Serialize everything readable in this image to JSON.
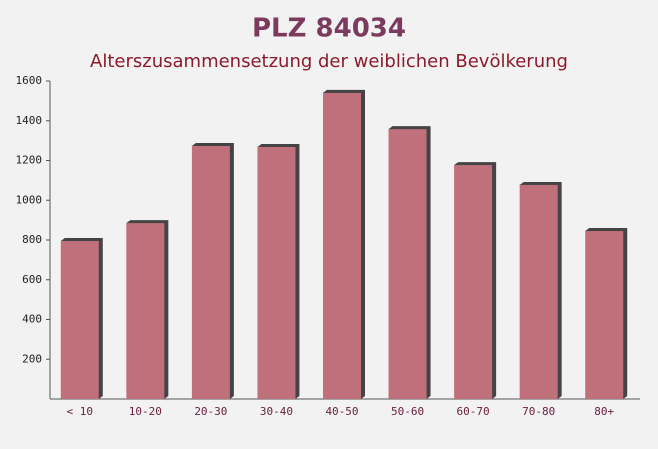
{
  "chart_data": {
    "type": "bar",
    "title": "PLZ 84034",
    "subtitle": "Alterszusammensetzung der weiblichen Bevölkerung",
    "categories": [
      "< 10",
      "10-20",
      "20-30",
      "30-40",
      "40-50",
      "50-60",
      "60-70",
      "70-80",
      "80+"
    ],
    "values": [
      795,
      885,
      1273,
      1268,
      1540,
      1358,
      1177,
      1077,
      845
    ],
    "color": "#c0707a",
    "ylim": [
      0,
      1600
    ],
    "yticks": [
      200,
      400,
      600,
      800,
      1000,
      1200,
      1400,
      1600
    ]
  }
}
